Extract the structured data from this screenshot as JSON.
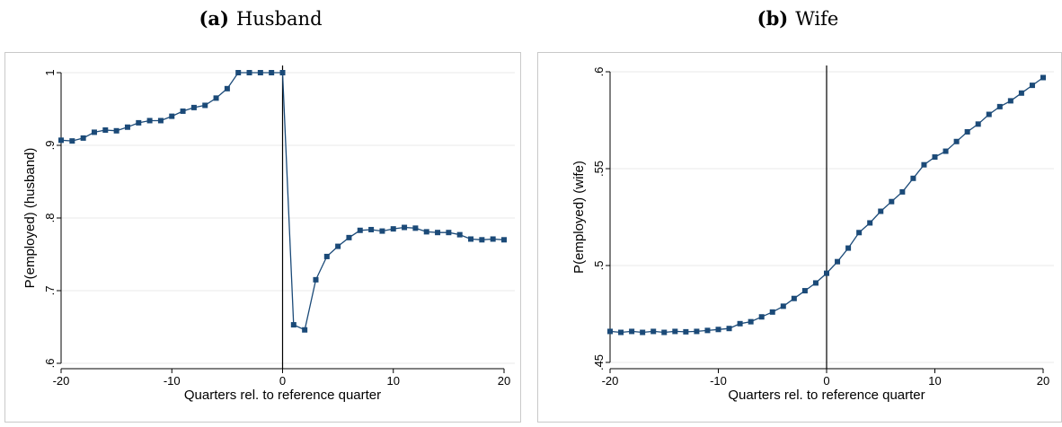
{
  "chart_data": [
    {
      "type": "line",
      "panel_letter": "(a)",
      "panel_title": "Husband",
      "xlabel": "Quarters rel. to reference quarter",
      "ylabel": "P(employed) (husband)",
      "xlim": [
        -20,
        20
      ],
      "ylim": [
        0.6,
        1.0
      ],
      "xticks": [
        -20,
        -10,
        0,
        10,
        20
      ],
      "yticks": [
        0.6,
        0.7,
        0.8,
        0.9,
        1.0
      ],
      "xtick_labels": [
        "-20",
        "-10",
        "0",
        "10",
        "20"
      ],
      "ytick_labels": [
        ".6",
        ".7",
        ".8",
        ".9",
        "1"
      ],
      "grid": true,
      "vline_x": 0,
      "line_color": "#1b4a78",
      "marker": "square",
      "x": [
        -20,
        -19,
        -18,
        -17,
        -16,
        -15,
        -14,
        -13,
        -12,
        -11,
        -10,
        -9,
        -8,
        -7,
        -6,
        -5,
        -4,
        -3,
        -2,
        -1,
        0,
        1,
        2,
        3,
        4,
        5,
        6,
        7,
        8,
        9,
        10,
        11,
        12,
        13,
        14,
        15,
        16,
        17,
        18,
        19,
        20
      ],
      "values": [
        0.907,
        0.906,
        0.91,
        0.918,
        0.921,
        0.92,
        0.925,
        0.931,
        0.934,
        0.934,
        0.94,
        0.947,
        0.952,
        0.955,
        0.965,
        0.978,
        1.0,
        1.0,
        1.0,
        1.0,
        1.0,
        0.653,
        0.646,
        0.715,
        0.747,
        0.761,
        0.773,
        0.783,
        0.784,
        0.782,
        0.785,
        0.787,
        0.786,
        0.781,
        0.78,
        0.78,
        0.777,
        0.771,
        0.77,
        0.771,
        0.77
      ]
    },
    {
      "type": "line",
      "panel_letter": "(b)",
      "panel_title": "Wife",
      "xlabel": "Quarters rel. to reference quarter",
      "ylabel": "P(employed) (wife)",
      "xlim": [
        -20,
        20
      ],
      "ylim": [
        0.45,
        0.6
      ],
      "xticks": [
        -20,
        -10,
        0,
        10,
        20
      ],
      "yticks": [
        0.45,
        0.5,
        0.55,
        0.6
      ],
      "xtick_labels": [
        "-20",
        "-10",
        "0",
        "10",
        "20"
      ],
      "ytick_labels": [
        ".45",
        ".5",
        ".55",
        ".6"
      ],
      "grid": true,
      "vline_x": 0,
      "line_color": "#1b4a78",
      "marker": "square",
      "x": [
        -20,
        -19,
        -18,
        -17,
        -16,
        -15,
        -14,
        -13,
        -12,
        -11,
        -10,
        -9,
        -8,
        -7,
        -6,
        -5,
        -4,
        -3,
        -2,
        -1,
        0,
        1,
        2,
        3,
        4,
        5,
        6,
        7,
        8,
        9,
        10,
        11,
        12,
        13,
        14,
        15,
        16,
        17,
        18,
        19,
        20
      ],
      "values": [
        0.466,
        0.4655,
        0.466,
        0.4655,
        0.466,
        0.4655,
        0.466,
        0.4658,
        0.466,
        0.4665,
        0.467,
        0.4675,
        0.47,
        0.471,
        0.4735,
        0.476,
        0.479,
        0.483,
        0.487,
        0.491,
        0.496,
        0.502,
        0.509,
        0.517,
        0.522,
        0.528,
        0.533,
        0.538,
        0.545,
        0.552,
        0.556,
        0.559,
        0.564,
        0.569,
        0.573,
        0.578,
        0.582,
        0.585,
        0.589,
        0.593,
        0.597
      ]
    }
  ]
}
